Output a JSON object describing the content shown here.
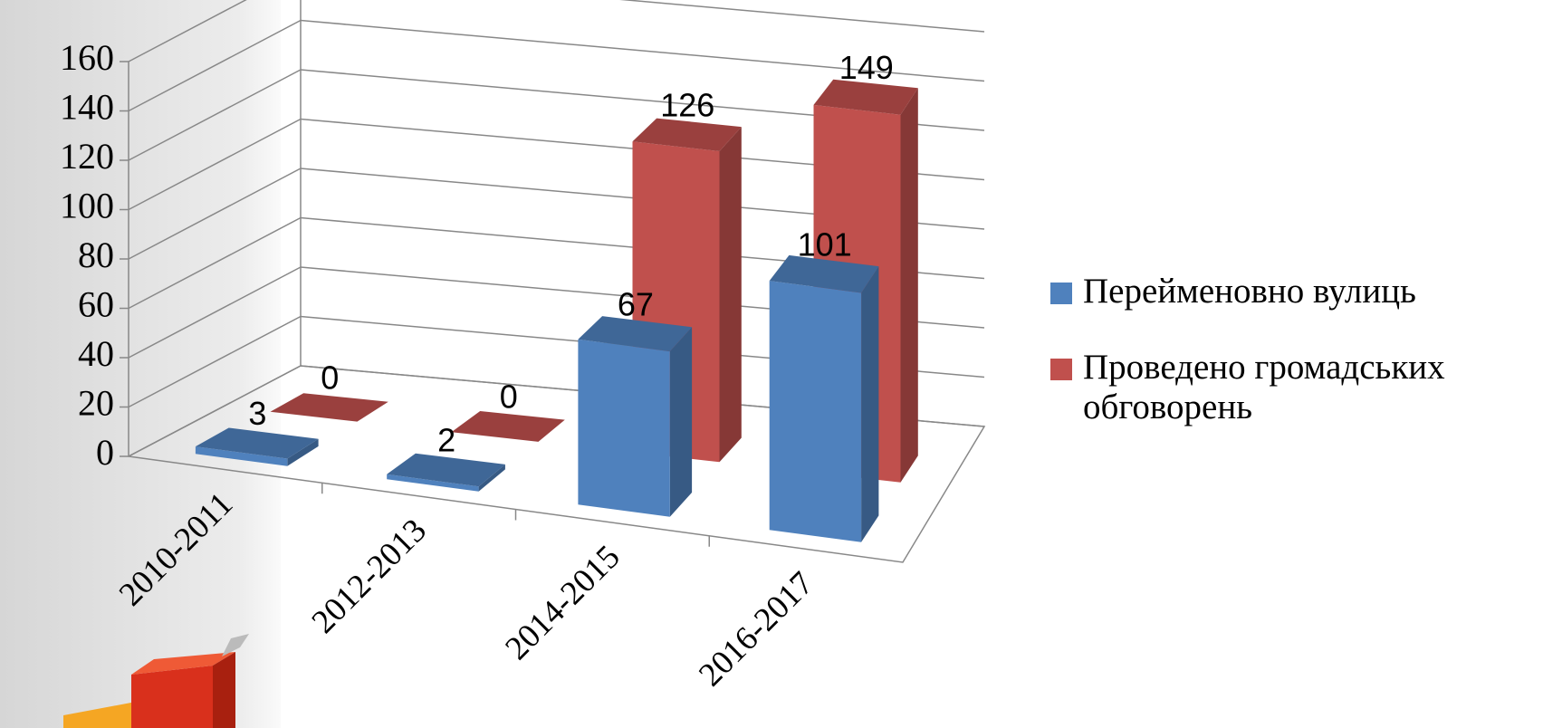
{
  "chart_data": {
    "type": "bar3d",
    "categories": [
      "2010-2011",
      "2012-2013",
      "2014-2015",
      "2016-2017"
    ],
    "series": [
      {
        "name": "Перейменовно вулиць",
        "color": "#4f81bd",
        "values": [
          3,
          2,
          67,
          101
        ]
      },
      {
        "name": "Проведено громадських обговорень",
        "color": "#c0504d",
        "values": [
          0,
          0,
          126,
          149
        ]
      }
    ],
    "ylim": [
      0,
      160
    ],
    "yticks": [
      0,
      20,
      40,
      60,
      80,
      100,
      120,
      140,
      160
    ],
    "grid": true,
    "legend": "right"
  }
}
